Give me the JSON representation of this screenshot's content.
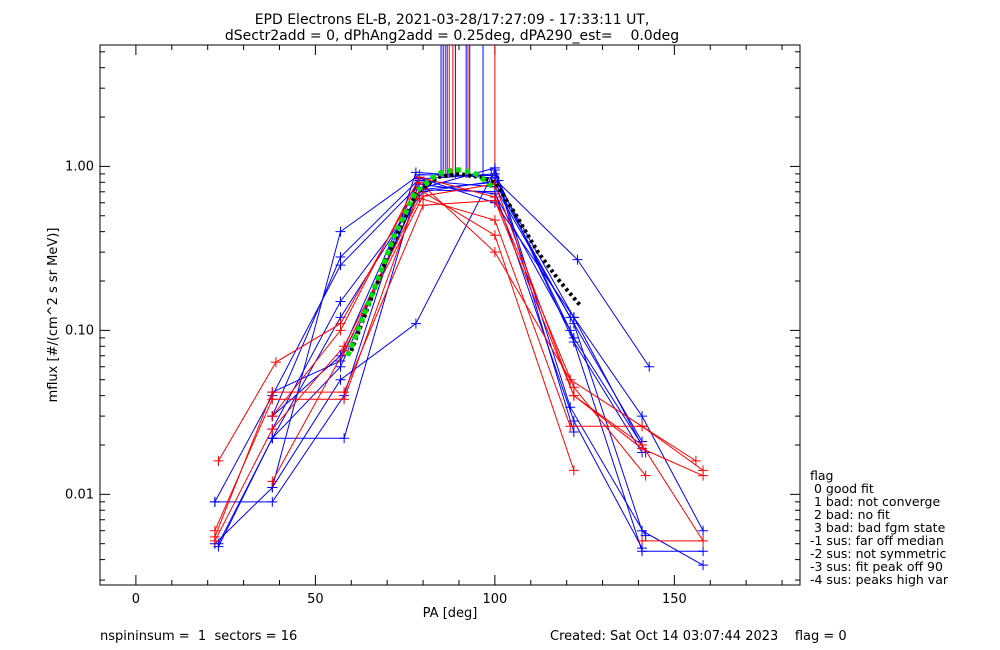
{
  "chart_data": {
    "type": "line",
    "title_line1": "EPD Electrons EL-B, 2021-03-28/17:27:09 - 17:33:11 UT,",
    "title_line2": "dSectr2add = 0, dPhAng2add = 0.25deg, dPA290_est=    0.0deg",
    "xlabel": "PA [deg]",
    "ylabel": "mflux [#/(cm^2 s sr MeV)]",
    "xlim": [
      -10,
      185
    ],
    "ylim": [
      0.0028,
      5.5
    ],
    "yscale": "log",
    "xticks": [
      0,
      50,
      100,
      150
    ],
    "xtick_labels": [
      "0",
      "50",
      "100",
      "150"
    ],
    "yticks": [
      0.01,
      0.1,
      1.0
    ],
    "ytick_labels": [
      "0.01",
      "0.10",
      "1.00"
    ],
    "grid": false,
    "colors": {
      "blue": "#0000ff",
      "red": "#ff0000",
      "black": "#000000",
      "green": "#00e000"
    },
    "series": [
      {
        "color": "blue",
        "points": [
          [
            22,
            0.009
          ],
          [
            38,
            0.009
          ],
          [
            58,
            0.04
          ],
          [
            78,
            0.92
          ],
          [
            100,
            0.85
          ],
          [
            122,
            0.12
          ],
          [
            141,
            0.03
          ],
          [
            158,
            0.006
          ]
        ]
      },
      {
        "color": "blue",
        "points": [
          [
            22,
            0.005
          ],
          [
            38,
            0.011
          ],
          [
            57,
            0.4
          ],
          [
            79,
            0.89
          ],
          [
            99,
            0.88
          ],
          [
            123,
            0.27
          ],
          [
            143,
            0.06
          ]
        ]
      },
      {
        "color": "blue",
        "points": [
          [
            23,
            0.0048
          ],
          [
            38,
            0.022
          ],
          [
            58,
            0.022
          ],
          [
            79,
            0.82
          ],
          [
            100,
            0.75
          ],
          [
            122,
            0.11
          ],
          [
            141,
            0.006
          ],
          [
            158,
            0.0037
          ]
        ]
      },
      {
        "color": "blue",
        "points": [
          [
            22,
            0.009
          ],
          [
            38,
            0.04
          ],
          [
            57,
            0.25
          ],
          [
            79,
            0.78
          ],
          [
            100,
            0.68
          ],
          [
            121,
            0.1
          ],
          [
            141,
            0.0045
          ],
          [
            158,
            0.0045
          ]
        ]
      },
      {
        "color": "blue",
        "points": [
          [
            38,
            0.03
          ],
          [
            57,
            0.28
          ],
          [
            79,
            0.84
          ],
          [
            100,
            0.9
          ],
          [
            122,
            0.09
          ],
          [
            141,
            0.02
          ]
        ]
      },
      {
        "color": "blue",
        "points": [
          [
            38,
            0.025
          ],
          [
            57,
            0.15
          ],
          [
            80,
            0.7
          ],
          [
            101,
            0.82
          ],
          [
            122,
            0.085
          ],
          [
            141,
            0.018
          ]
        ]
      },
      {
        "color": "blue",
        "points": [
          [
            38,
            0.022
          ],
          [
            57,
            0.12
          ],
          [
            80,
            0.74
          ],
          [
            100,
            0.98
          ],
          [
            121,
            0.034
          ],
          [
            142,
            0.0056
          ]
        ]
      },
      {
        "color": "blue",
        "points": [
          [
            23,
            0.005
          ],
          [
            38,
            0.022
          ],
          [
            57,
            0.06
          ],
          [
            79,
            0.72
          ],
          [
            100,
            0.7
          ],
          [
            122,
            0.028
          ],
          [
            141,
            0.0047
          ]
        ]
      },
      {
        "color": "blue",
        "points": [
          [
            38,
            0.011
          ],
          [
            57,
            0.05
          ],
          [
            78,
            0.11
          ],
          [
            100,
            0.95
          ],
          [
            122,
            0.024
          ]
        ]
      },
      {
        "color": "blue",
        "points": [
          [
            38,
            0.042
          ],
          [
            57,
            0.065
          ],
          [
            79,
            0.72
          ],
          [
            100,
            0.8
          ],
          [
            121,
            0.12
          ],
          [
            141,
            0.021
          ]
        ]
      },
      {
        "color": "blue",
        "points": [
          [
            38,
            0.03
          ],
          [
            57,
            0.07
          ],
          [
            79,
            0.85
          ],
          [
            100,
            0.6
          ],
          [
            122,
            0.12
          ],
          [
            142,
            0.018
          ]
        ]
      },
      {
        "color": "red",
        "points": [
          [
            23,
            0.016
          ],
          [
            39,
            0.064
          ],
          [
            57,
            0.11
          ],
          [
            79,
            0.8
          ],
          [
            100,
            0.3
          ],
          [
            121,
            0.05
          ],
          [
            141,
            0.026
          ],
          [
            156,
            0.016
          ]
        ]
      },
      {
        "color": "red",
        "points": [
          [
            22,
            0.006
          ],
          [
            38,
            0.038
          ],
          [
            58,
            0.038
          ],
          [
            79,
            0.72
          ],
          [
            100,
            0.38
          ],
          [
            122,
            0.014
          ]
        ]
      },
      {
        "color": "red",
        "points": [
          [
            22,
            0.0052
          ],
          [
            38,
            0.025
          ],
          [
            58,
            0.08
          ],
          [
            79,
            0.64
          ],
          [
            100,
            0.47
          ],
          [
            121,
            0.026
          ],
          [
            141,
            0.026
          ],
          [
            158,
            0.014
          ]
        ]
      },
      {
        "color": "red",
        "points": [
          [
            22,
            0.0055
          ],
          [
            38,
            0.042
          ],
          [
            58,
            0.042
          ],
          [
            80,
            0.58
          ],
          [
            100,
            0.62
          ],
          [
            122,
            0.04
          ],
          [
            141,
            0.019
          ],
          [
            158,
            0.013
          ]
        ]
      },
      {
        "color": "red",
        "points": [
          [
            38,
            0.03
          ],
          [
            57,
            0.1
          ],
          [
            79,
            0.86
          ],
          [
            100,
            0.65
          ],
          [
            122,
            0.045
          ],
          [
            142,
            0.013
          ]
        ]
      },
      {
        "color": "red",
        "points": [
          [
            38,
            0.012
          ],
          [
            58,
            0.075
          ],
          [
            80,
            0.66
          ],
          [
            100,
            0.78
          ],
          [
            122,
            0.04
          ],
          [
            141,
            0.02
          ],
          [
            158,
            0.0052
          ],
          [
            141,
            0.0052
          ]
        ]
      }
    ],
    "fit_black": {
      "points": [
        [
          60,
          0.075
        ],
        [
          70,
          0.28
        ],
        [
          78,
          0.68
        ],
        [
          84,
          0.86
        ],
        [
          90,
          0.9
        ],
        [
          96,
          0.86
        ],
        [
          100,
          0.8
        ],
        [
          106,
          0.5
        ],
        [
          112,
          0.3
        ],
        [
          118,
          0.2
        ],
        [
          124,
          0.14
        ]
      ]
    },
    "fit_green": {
      "points": [
        [
          59,
          0.07
        ],
        [
          66,
          0.17
        ],
        [
          72,
          0.38
        ],
        [
          78,
          0.7
        ],
        [
          84,
          0.9
        ],
        [
          89,
          0.96
        ],
        [
          94,
          0.92
        ],
        [
          98,
          0.8
        ],
        [
          100,
          0.72
        ]
      ]
    },
    "vlines": [
      {
        "x": 85.0,
        "color": "blue"
      },
      {
        "x": 85.6,
        "color": "blue"
      },
      {
        "x": 86.2,
        "color": "red"
      },
      {
        "x": 86.7,
        "color": "blue"
      },
      {
        "x": 87.3,
        "color": "red"
      },
      {
        "x": 88.3,
        "color": "red"
      },
      {
        "x": 89.0,
        "color": "blue"
      },
      {
        "x": 92.0,
        "color": "blue"
      },
      {
        "x": 92.5,
        "color": "red"
      },
      {
        "x": 93.0,
        "color": "blue"
      },
      {
        "x": 96.7,
        "color": "blue"
      },
      {
        "x": 100.0,
        "color": "red"
      }
    ],
    "vline_ymin": 0.85,
    "legend": {
      "header": "flag",
      "items": [
        " 0 good fit",
        " 1 bad: not converge",
        " 2 bad: no fit",
        " 3 bad: bad fgm state",
        "-1 sus: far off median",
        "-2 sus: not symmetric",
        "-3 sus: fit peak off 90",
        "-4 sus: peaks high var"
      ]
    },
    "footer_left": "nspininsum =  1  sectors = 16",
    "footer_right": "Created: Sat Oct 14 03:07:44 2023    flag = 0"
  }
}
